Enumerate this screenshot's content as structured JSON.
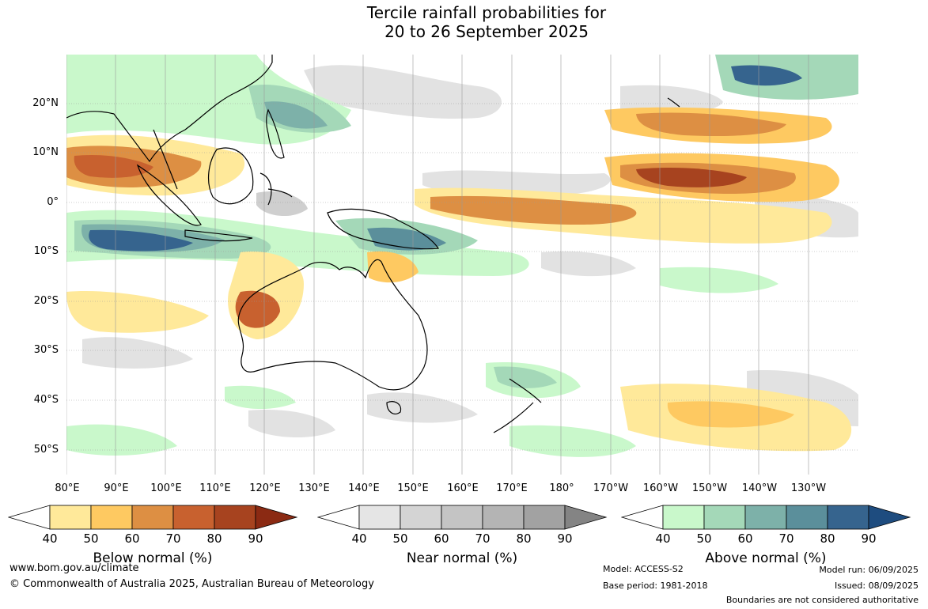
{
  "title": {
    "line1": "Tercile rainfall probabilities for",
    "line2": "20 to 26 September 2025"
  },
  "map": {
    "lat_labels": [
      "20°N",
      "10°N",
      "0°",
      "10°S",
      "20°S",
      "30°S",
      "40°S",
      "50°S"
    ],
    "lon_labels": [
      "80°E",
      "90°E",
      "100°E",
      "110°E",
      "120°E",
      "130°E",
      "140°E",
      "150°E",
      "160°E",
      "170°E",
      "180°",
      "170°W",
      "160°W",
      "150°W",
      "140°W",
      "130°W"
    ]
  },
  "legends": [
    {
      "name": "below",
      "title": "Below normal (%)",
      "ticks": [
        "40",
        "50",
        "60",
        "70",
        "80",
        "90"
      ],
      "colors": [
        "#ffffff",
        "#ffe99a",
        "#fec961",
        "#dd8f43",
        "#c8612f",
        "#a7431f",
        "#8b2a13"
      ]
    },
    {
      "name": "near",
      "title": "Near normal (%)",
      "ticks": [
        "40",
        "50",
        "60",
        "70",
        "80",
        "90"
      ],
      "colors": [
        "#ffffff",
        "#e5e5e5",
        "#d4d4d4",
        "#c4c4c4",
        "#b4b4b4",
        "#a2a2a2",
        "#848484"
      ]
    },
    {
      "name": "above",
      "title": "Above normal (%)",
      "ticks": [
        "40",
        "50",
        "60",
        "70",
        "80",
        "90"
      ],
      "colors": [
        "#ffffff",
        "#c9f8cb",
        "#a4d8b8",
        "#7db1a9",
        "#5b8f9b",
        "#36648e",
        "#1e4c7f"
      ]
    }
  ],
  "footer": {
    "website": "www.bom.gov.au/climate",
    "copyright": "© Commonwealth of Australia 2025, Australian Bureau of Meteorology",
    "model": "Model: ACCESS-S2",
    "base_period": "Base period: 1981-2018",
    "model_run": "Model run: 06/09/2025",
    "issued": "Issued: 08/09/2025",
    "disclaimer": "Boundaries are not considered authoritative"
  }
}
